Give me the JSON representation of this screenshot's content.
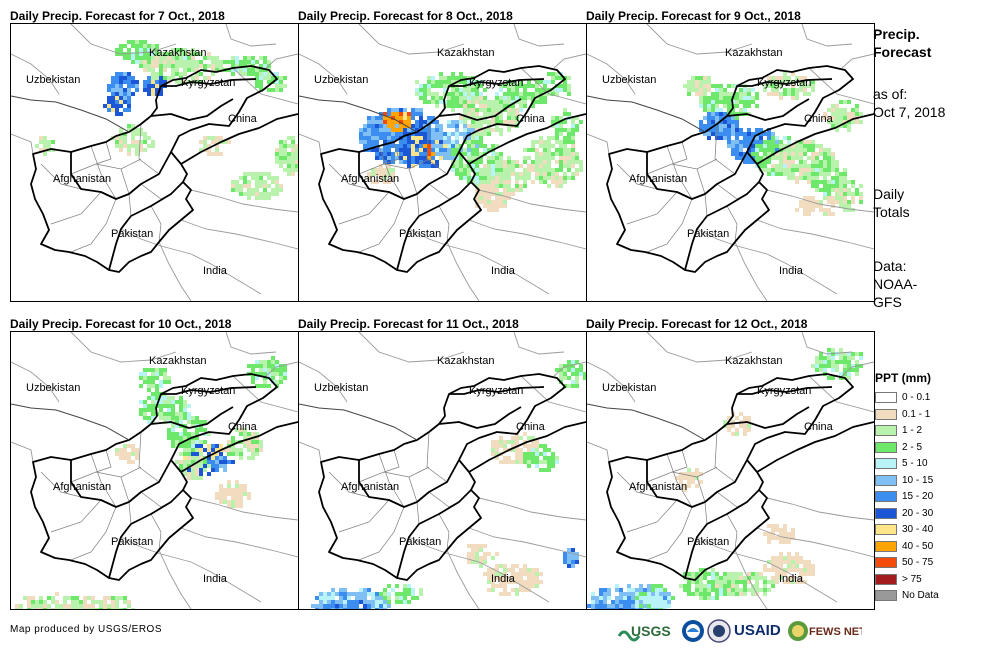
{
  "panels": [
    {
      "title": "Daily Precip. Forecast for 7 Oct., 2018"
    },
    {
      "title": "Daily Precip. Forecast for 8 Oct., 2018"
    },
    {
      "title": "Daily Precip. Forecast for 9 Oct., 2018"
    },
    {
      "title": "Daily Precip. Forecast for 10 Oct., 2018"
    },
    {
      "title": "Daily Precip. Forecast for 11 Oct., 2018"
    },
    {
      "title": "Daily Precip. Forecast for 12 Oct., 2018"
    }
  ],
  "countries": {
    "kazakhstan": "Kazakhstan",
    "uzbekistan": "Uzbekistan",
    "kyrgyzstan": "Kyrgyzstan",
    "china": "China",
    "afghanistan": "Afghanistan",
    "pakistan": "Pakistan",
    "india": "India"
  },
  "sidebar": {
    "title_line1": "Precip.",
    "title_line2": "Forecast",
    "asof_line1": "as of:",
    "asof_line2": "Oct 7, 2018",
    "totals_line1": "Daily",
    "totals_line2": "Totals",
    "data_line1": "Data:",
    "data_line2": "NOAA-",
    "data_line3": "GFS"
  },
  "legend": {
    "title": "PPT (mm)",
    "items": [
      {
        "label": "0 - 0.1",
        "color": "#ffffff"
      },
      {
        "label": "0.1 - 1",
        "color": "#f1dcbf"
      },
      {
        "label": "1 - 2",
        "color": "#b9f2ad"
      },
      {
        "label": "2 - 5",
        "color": "#6ee86a"
      },
      {
        "label": "5 - 10",
        "color": "#b8f4f7"
      },
      {
        "label": "10 - 15",
        "color": "#7fbff4"
      },
      {
        "label": "15 - 20",
        "color": "#3b8ef0"
      },
      {
        "label": "20 - 30",
        "color": "#1a56d6"
      },
      {
        "label": "30 - 40",
        "color": "#ffe58a"
      },
      {
        "label": "40 - 50",
        "color": "#ffa400"
      },
      {
        "label": "50 - 75",
        "color": "#f24b0a"
      },
      {
        "label": "> 75",
        "color": "#a51c1c"
      },
      {
        "label": "No Data",
        "color": "#999999"
      }
    ]
  },
  "footer": {
    "credit": "Map produced by USGS/EROS",
    "logo_usgs": "USGS",
    "logo_usaid": "USAID",
    "logo_fewsnet": "FEWS NET"
  }
}
